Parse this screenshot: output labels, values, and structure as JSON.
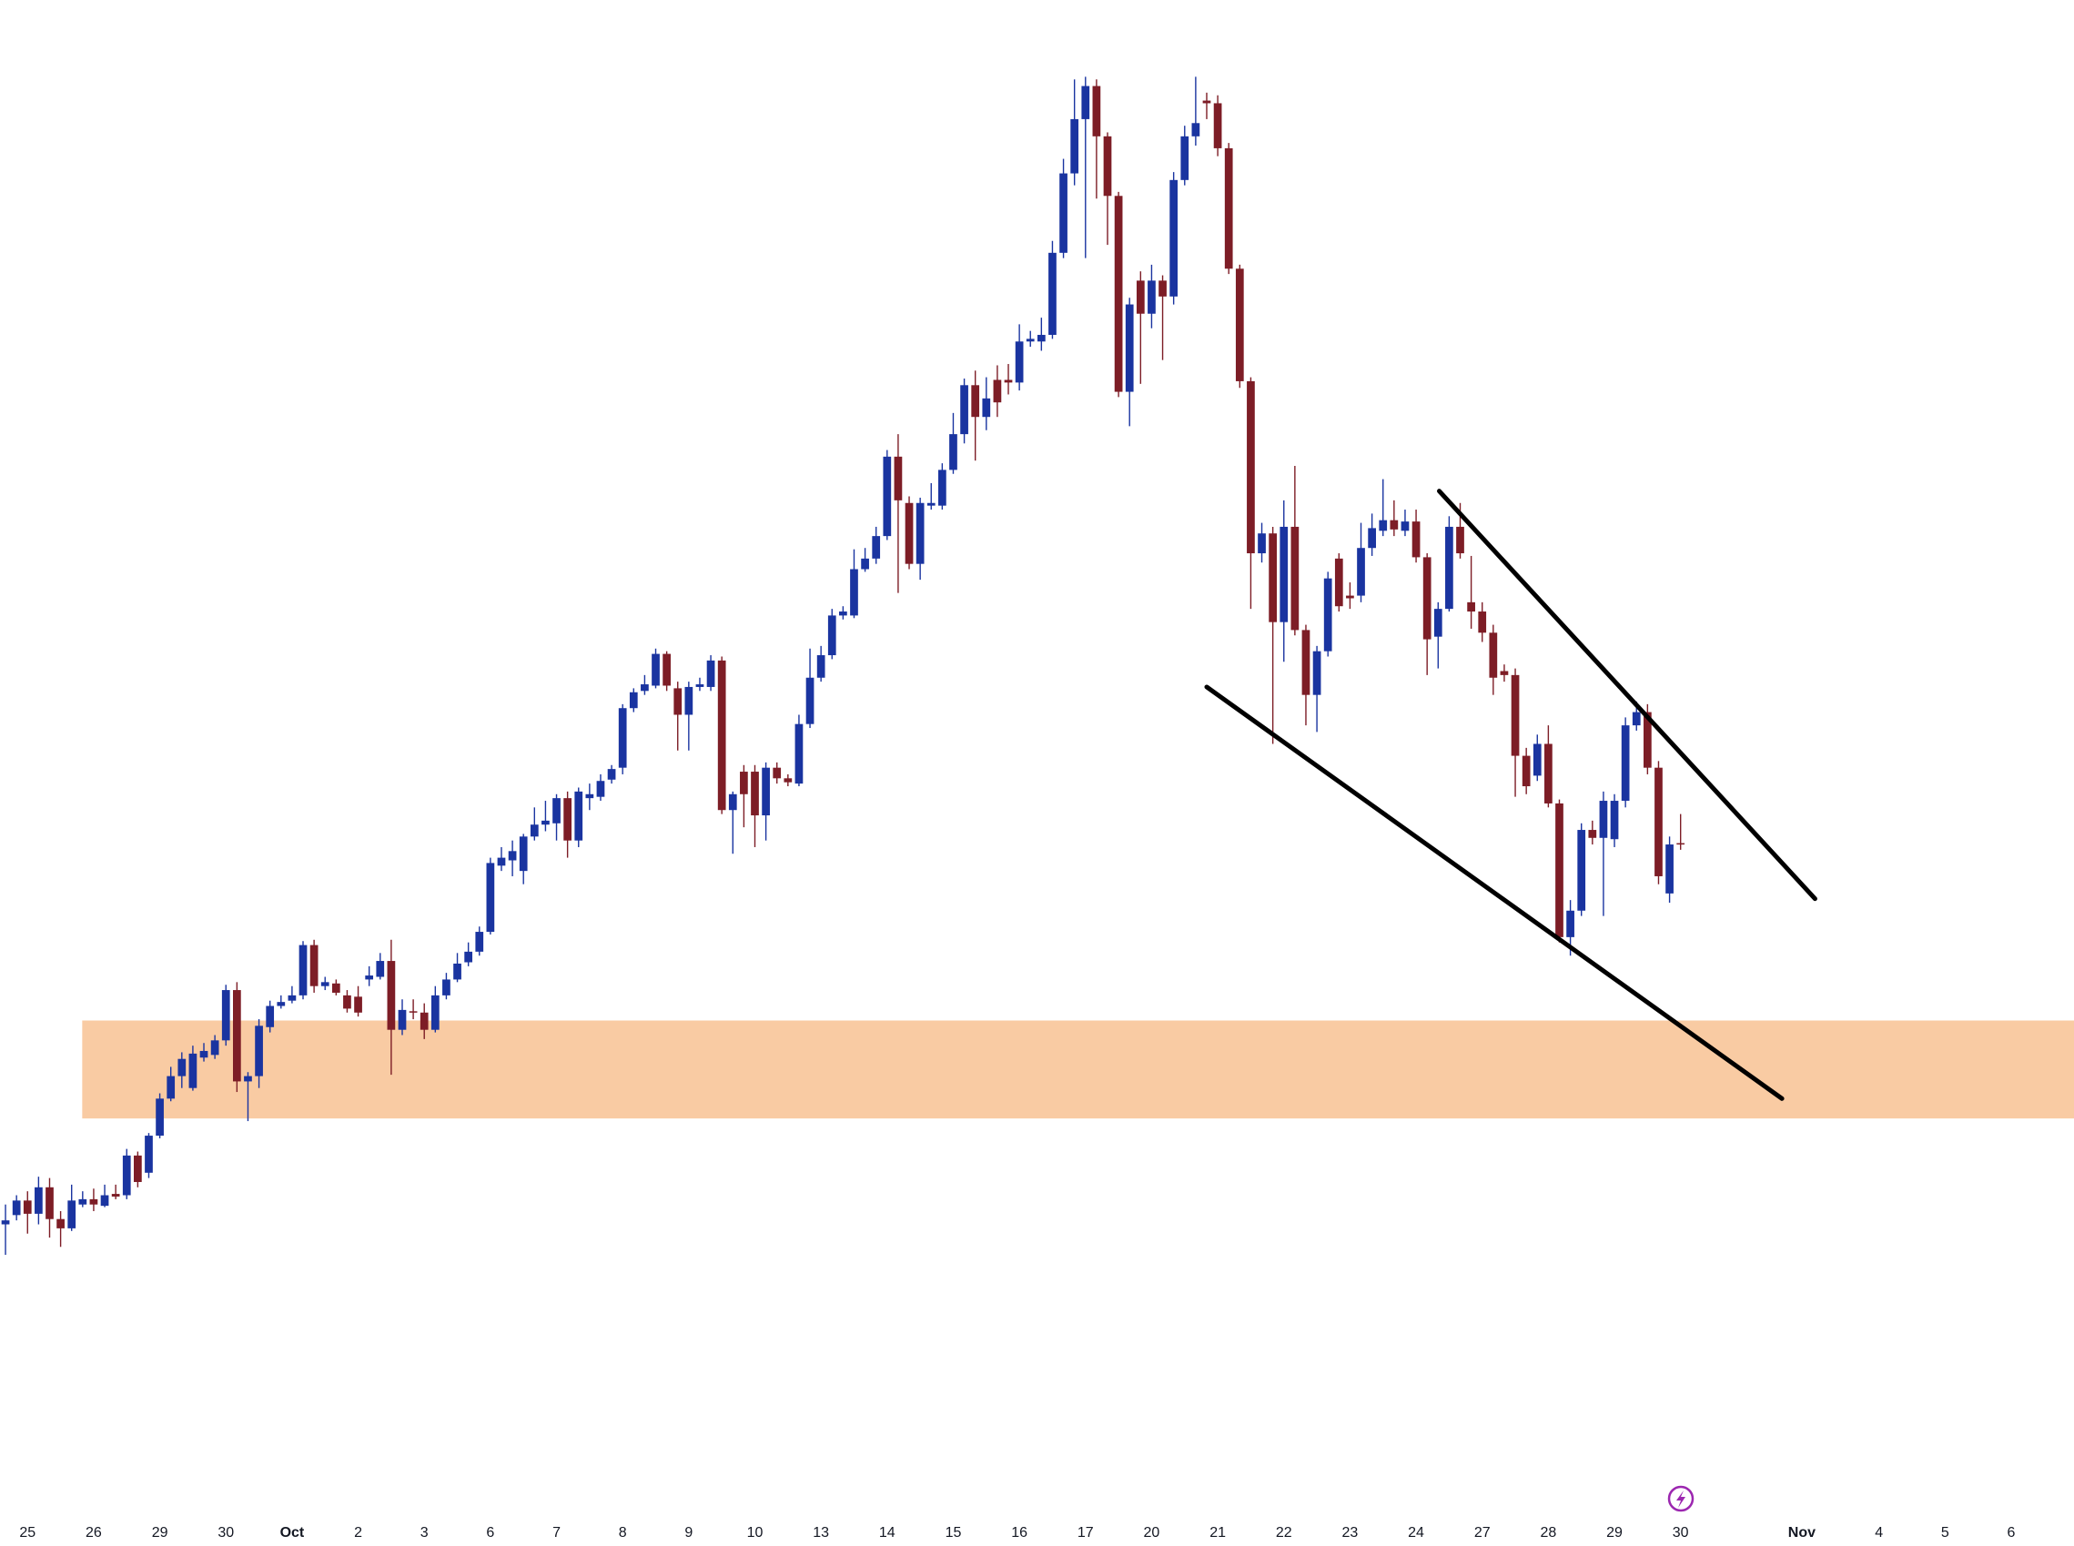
{
  "chart_data": {
    "type": "candlestick",
    "up_color": "#1a34a0",
    "down_color": "#7d1d26",
    "xlim": [
      -0.5,
      187.7
    ],
    "ylim": [
      0,
      1168
    ],
    "xticks": [
      {
        "value": 2,
        "label": "25"
      },
      {
        "value": 8,
        "label": "26"
      },
      {
        "value": 14,
        "label": "29"
      },
      {
        "value": 20,
        "label": "30"
      },
      {
        "value": 26,
        "label": "Oct"
      },
      {
        "value": 32,
        "label": "2"
      },
      {
        "value": 38,
        "label": "3"
      },
      {
        "value": 44,
        "label": "6"
      },
      {
        "value": 50,
        "label": "7"
      },
      {
        "value": 56,
        "label": "8"
      },
      {
        "value": 62,
        "label": "9"
      },
      {
        "value": 68,
        "label": "10"
      },
      {
        "value": 74,
        "label": "13"
      },
      {
        "value": 80,
        "label": "14"
      },
      {
        "value": 86,
        "label": "15"
      },
      {
        "value": 92,
        "label": "16"
      },
      {
        "value": 98,
        "label": "17"
      },
      {
        "value": 104,
        "label": "20"
      },
      {
        "value": 110,
        "label": "21"
      },
      {
        "value": 116,
        "label": "22"
      },
      {
        "value": 122,
        "label": "23"
      },
      {
        "value": 128,
        "label": "24"
      },
      {
        "value": 134,
        "label": "27"
      },
      {
        "value": 140,
        "label": "28"
      },
      {
        "value": 146,
        "label": "29"
      },
      {
        "value": 152,
        "label": "30"
      },
      {
        "value": 163,
        "label": "Nov"
      },
      {
        "value": 170,
        "label": "4"
      },
      {
        "value": 176,
        "label": "5"
      },
      {
        "value": 182,
        "label": "6"
      }
    ],
    "zone": {
      "from": 323,
      "to": 397,
      "start": 6.96,
      "color": "#f9cba3"
    },
    "trendlines": [
      {
        "x": [
          130.1,
          164.2
        ],
        "y": [
          797,
          489
        ],
        "color": "#000000"
      },
      {
        "x": [
          109,
          161.2
        ],
        "y": [
          649,
          338
        ],
        "color": "#000000"
      }
    ],
    "ohlc": [
      [
        243,
        258,
        220,
        246
      ],
      [
        250,
        265,
        246,
        261
      ],
      [
        261,
        268,
        236,
        251
      ],
      [
        251,
        279,
        243,
        271
      ],
      [
        271,
        278,
        233,
        247
      ],
      [
        247,
        253,
        226,
        240
      ],
      [
        240,
        273,
        238,
        261
      ],
      [
        258,
        268,
        256,
        262
      ],
      [
        262,
        270,
        253,
        258
      ],
      [
        257,
        273,
        256,
        265
      ],
      [
        266,
        273,
        262,
        264
      ],
      [
        265,
        300,
        262,
        295
      ],
      [
        295,
        298,
        271,
        275
      ],
      [
        282,
        312,
        278,
        310
      ],
      [
        310,
        342,
        308,
        338
      ],
      [
        338,
        362,
        336,
        355
      ],
      [
        355,
        373,
        346,
        368
      ],
      [
        346,
        378,
        344,
        372
      ],
      [
        369,
        380,
        366,
        374
      ],
      [
        371,
        386,
        368,
        382
      ],
      [
        382,
        424,
        378,
        420
      ],
      [
        420,
        426,
        343,
        351
      ],
      [
        351,
        358,
        321,
        355
      ],
      [
        355,
        398,
        346,
        393
      ],
      [
        392,
        412,
        388,
        408
      ],
      [
        408,
        416,
        406,
        411
      ],
      [
        412,
        423,
        410,
        416
      ],
      [
        416,
        457,
        413,
        454
      ],
      [
        454,
        458,
        418,
        423
      ],
      [
        423,
        430,
        420,
        426
      ],
      [
        425,
        428,
        416,
        418
      ],
      [
        416,
        420,
        403,
        406
      ],
      [
        415,
        423,
        400,
        403
      ],
      [
        428,
        438,
        423,
        431
      ],
      [
        430,
        448,
        428,
        442
      ],
      [
        442,
        458,
        356,
        390
      ],
      [
        390,
        413,
        386,
        405
      ],
      [
        404,
        413,
        398,
        403
      ],
      [
        403,
        410,
        383,
        390
      ],
      [
        390,
        423,
        388,
        416
      ],
      [
        416,
        433,
        413,
        428
      ],
      [
        428,
        448,
        426,
        440
      ],
      [
        441,
        456,
        438,
        449
      ],
      [
        449,
        468,
        446,
        464
      ],
      [
        464,
        520,
        462,
        516
      ],
      [
        514,
        528,
        510,
        520
      ],
      [
        518,
        533,
        506,
        525
      ],
      [
        510,
        538,
        500,
        536
      ],
      [
        536,
        558,
        533,
        545
      ],
      [
        545,
        563,
        540,
        548
      ],
      [
        546,
        568,
        533,
        565
      ],
      [
        565,
        570,
        520,
        533
      ],
      [
        533,
        573,
        528,
        570
      ],
      [
        565,
        576,
        556,
        568
      ],
      [
        566,
        583,
        563,
        578
      ],
      [
        579,
        590,
        576,
        587
      ],
      [
        588,
        636,
        583,
        633
      ],
      [
        633,
        648,
        630,
        645
      ],
      [
        646,
        658,
        643,
        651
      ],
      [
        650,
        678,
        648,
        674
      ],
      [
        674,
        676,
        646,
        650
      ],
      [
        648,
        653,
        601,
        628
      ],
      [
        628,
        653,
        601,
        649
      ],
      [
        649,
        656,
        646,
        651
      ],
      [
        649,
        673,
        646,
        669
      ],
      [
        669,
        672,
        553,
        556
      ],
      [
        556,
        570,
        523,
        568
      ],
      [
        585,
        590,
        543,
        568
      ],
      [
        585,
        590,
        528,
        552
      ],
      [
        552,
        592,
        533,
        588
      ],
      [
        588,
        592,
        576,
        580
      ],
      [
        580,
        583,
        574,
        577
      ],
      [
        576,
        628,
        574,
        621
      ],
      [
        621,
        678,
        618,
        656
      ],
      [
        656,
        680,
        653,
        673
      ],
      [
        673,
        708,
        670,
        703
      ],
      [
        703,
        710,
        700,
        706
      ],
      [
        703,
        753,
        701,
        738
      ],
      [
        738,
        754,
        736,
        746
      ],
      [
        746,
        770,
        742,
        763
      ],
      [
        763,
        828,
        760,
        823
      ],
      [
        823,
        840,
        720,
        790
      ],
      [
        788,
        793,
        738,
        742
      ],
      [
        742,
        792,
        730,
        788
      ],
      [
        786,
        803,
        783,
        788
      ],
      [
        786,
        818,
        783,
        813
      ],
      [
        813,
        856,
        810,
        840
      ],
      [
        840,
        882,
        833,
        877
      ],
      [
        877,
        888,
        820,
        853
      ],
      [
        853,
        883,
        843,
        867
      ],
      [
        881,
        892,
        853,
        864
      ],
      [
        881,
        893,
        870,
        879
      ],
      [
        879,
        923,
        873,
        910
      ],
      [
        910,
        918,
        906,
        912
      ],
      [
        910,
        928,
        903,
        915
      ],
      [
        915,
        986,
        912,
        977
      ],
      [
        977,
        1048,
        973,
        1037
      ],
      [
        1037,
        1108,
        1028,
        1078
      ],
      [
        1078,
        1110,
        973,
        1103
      ],
      [
        1103,
        1108,
        1018,
        1065
      ],
      [
        1065,
        1068,
        983,
        1020
      ],
      [
        1020,
        1023,
        868,
        872
      ],
      [
        872,
        943,
        846,
        938
      ],
      [
        956,
        963,
        878,
        931
      ],
      [
        931,
        968,
        920,
        956
      ],
      [
        956,
        960,
        896,
        944
      ],
      [
        944,
        1038,
        938,
        1032
      ],
      [
        1032,
        1073,
        1028,
        1065
      ],
      [
        1065,
        1110,
        1058,
        1075
      ],
      [
        1092,
        1098,
        1078,
        1090
      ],
      [
        1090,
        1096,
        1050,
        1056
      ],
      [
        1056,
        1060,
        961,
        965
      ],
      [
        965,
        968,
        875,
        880
      ],
      [
        880,
        883,
        708,
        750
      ],
      [
        750,
        773,
        743,
        765
      ],
      [
        765,
        770,
        606,
        698
      ],
      [
        698,
        790,
        668,
        770
      ],
      [
        770,
        816,
        688,
        692
      ],
      [
        692,
        696,
        620,
        643
      ],
      [
        643,
        680,
        615,
        676
      ],
      [
        676,
        736,
        672,
        731
      ],
      [
        746,
        750,
        706,
        710
      ],
      [
        718,
        728,
        708,
        716
      ],
      [
        718,
        773,
        713,
        754
      ],
      [
        754,
        780,
        748,
        769
      ],
      [
        767,
        806,
        763,
        775
      ],
      [
        775,
        790,
        763,
        768
      ],
      [
        767,
        783,
        763,
        774
      ],
      [
        774,
        783,
        743,
        747
      ],
      [
        747,
        750,
        658,
        685
      ],
      [
        687,
        713,
        663,
        708
      ],
      [
        708,
        778,
        706,
        770
      ],
      [
        770,
        788,
        746,
        750
      ],
      [
        713,
        748,
        693,
        706
      ],
      [
        706,
        713,
        683,
        690
      ],
      [
        690,
        696,
        643,
        656
      ],
      [
        661,
        666,
        653,
        658
      ],
      [
        658,
        663,
        566,
        597
      ],
      [
        597,
        603,
        568,
        574
      ],
      [
        582,
        613,
        578,
        606
      ],
      [
        606,
        620,
        558,
        561
      ],
      [
        561,
        564,
        456,
        460
      ],
      [
        460,
        488,
        446,
        480
      ],
      [
        480,
        546,
        476,
        541
      ],
      [
        541,
        548,
        530,
        535
      ],
      [
        535,
        570,
        476,
        563
      ],
      [
        534,
        568,
        528,
        563
      ],
      [
        563,
        626,
        558,
        620
      ],
      [
        620,
        638,
        616,
        630
      ],
      [
        630,
        636,
        583,
        588
      ],
      [
        588,
        593,
        500,
        506
      ],
      [
        493,
        536,
        486,
        530
      ],
      [
        531,
        553,
        526,
        530
      ]
    ]
  }
}
